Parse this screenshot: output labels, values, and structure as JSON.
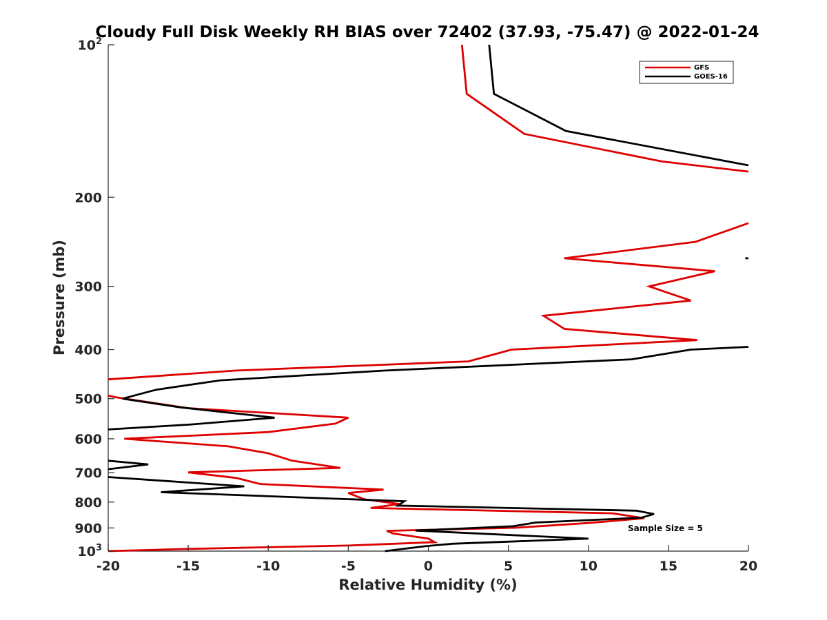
{
  "chart_data": {
    "type": "line",
    "title": "Cloudy Full Disk Weekly RH BIAS over 72402 (37.93, -75.47) @ 2022-01-24",
    "xlabel": "Relative Humidity (%)",
    "ylabel": "Pressure (mb)",
    "xlim": [
      -20,
      20
    ],
    "ylim": [
      100,
      1000
    ],
    "y_scale": "log",
    "y_reversed": true,
    "grid": false,
    "legend_position": "top-right",
    "x_ticks": [
      "-20",
      "-15",
      "-10",
      "-5",
      "0",
      "5",
      "10",
      "15",
      "20"
    ],
    "y_ticks": [
      {
        "value": 100,
        "base": "10",
        "exp": "2"
      },
      {
        "value": 200,
        "label": "200"
      },
      {
        "value": 300,
        "label": "300"
      },
      {
        "value": 400,
        "label": "400"
      },
      {
        "value": 500,
        "label": "500"
      },
      {
        "value": 600,
        "label": "600"
      },
      {
        "value": 700,
        "label": "700"
      },
      {
        "value": 800,
        "label": "800"
      },
      {
        "value": 900,
        "label": "900"
      },
      {
        "value": 1000,
        "base": "10",
        "exp": "3"
      }
    ],
    "annotation": "Sample Size = 5",
    "series": [
      {
        "name": "GFS",
        "color": "#dd0000",
        "segments": [
          [
            [
              2.1,
              100
            ],
            [
              2.4,
              125
            ],
            [
              6,
              150
            ],
            [
              14.6,
              170
            ],
            [
              20,
              178
            ]
          ],
          [
            [
              20,
              225
            ],
            [
              16.7,
              245
            ],
            [
              8.5,
              264
            ],
            [
              17.9,
              280
            ],
            [
              13.8,
              300
            ],
            [
              16.4,
              320
            ],
            [
              7.2,
              343
            ],
            [
              8.5,
              364
            ],
            [
              16.8,
              383
            ],
            [
              5.2,
              400
            ],
            [
              2.5,
              422
            ],
            [
              -12,
              440
            ],
            [
              -20,
              458
            ]
          ],
          [
            [
              -20,
              493
            ],
            [
              -19.5,
              497
            ],
            [
              -15,
              522
            ],
            [
              -5,
              545
            ],
            [
              -5.8,
              560
            ],
            [
              -10,
              582
            ],
            [
              -19,
              600
            ],
            [
              -12.5,
              621
            ],
            [
              -10,
              641
            ],
            [
              -8.5,
              663
            ],
            [
              -5.5,
              685
            ],
            [
              -15,
              699
            ],
            [
              -12,
              717
            ],
            [
              -10.5,
              737
            ],
            [
              -2.8,
              756
            ],
            [
              -5,
              768
            ],
            [
              -4,
              790
            ],
            [
              -1.8,
              807
            ],
            [
              -3.6,
              822
            ],
            [
              11.5,
              842
            ],
            [
              13.5,
              861
            ],
            [
              10,
              880
            ],
            [
              5.5,
              899
            ],
            [
              -2.6,
              912
            ],
            [
              -2.2,
              923
            ],
            [
              0,
              945
            ],
            [
              0.4,
              960
            ],
            [
              -5,
              975
            ],
            [
              -15,
              990
            ],
            [
              -20,
              1000
            ]
          ]
        ]
      },
      {
        "name": "GOES-16",
        "color": "#000000",
        "segments": [
          [
            [
              3.8,
              100
            ],
            [
              4.1,
              125
            ],
            [
              8.6,
              148
            ],
            [
              20,
              173
            ]
          ],
          [
            [
              19.8,
              264
            ],
            [
              20,
              264
            ]
          ],
          [
            [
              20,
              395
            ],
            [
              16.4,
              400
            ],
            [
              12.7,
              418
            ],
            [
              -2.7,
              440
            ],
            [
              -13,
              460
            ],
            [
              -17,
              480
            ],
            [
              -19.1,
              500
            ],
            [
              -15.5,
              520
            ],
            [
              -9.6,
              545
            ],
            [
              -14.8,
              562
            ],
            [
              -20,
              575
            ]
          ],
          [
            [
              -20,
              663
            ],
            [
              -17.5,
              674
            ],
            [
              -20,
              689
            ]
          ],
          [
            [
              -20,
              714
            ],
            [
              -11.5,
              745
            ],
            [
              -16.7,
              765
            ],
            [
              -1.5,
              797
            ],
            [
              -1.9,
              813
            ],
            [
              13,
              832
            ],
            [
              14.1,
              845
            ],
            [
              13.3,
              859
            ],
            [
              6.7,
              878
            ],
            [
              5.3,
              893
            ],
            [
              -0.8,
              911
            ],
            [
              10,
              945
            ],
            [
              1.5,
              967
            ],
            [
              -0.2,
              978
            ],
            [
              -2.7,
              1000
            ]
          ]
        ]
      }
    ]
  }
}
